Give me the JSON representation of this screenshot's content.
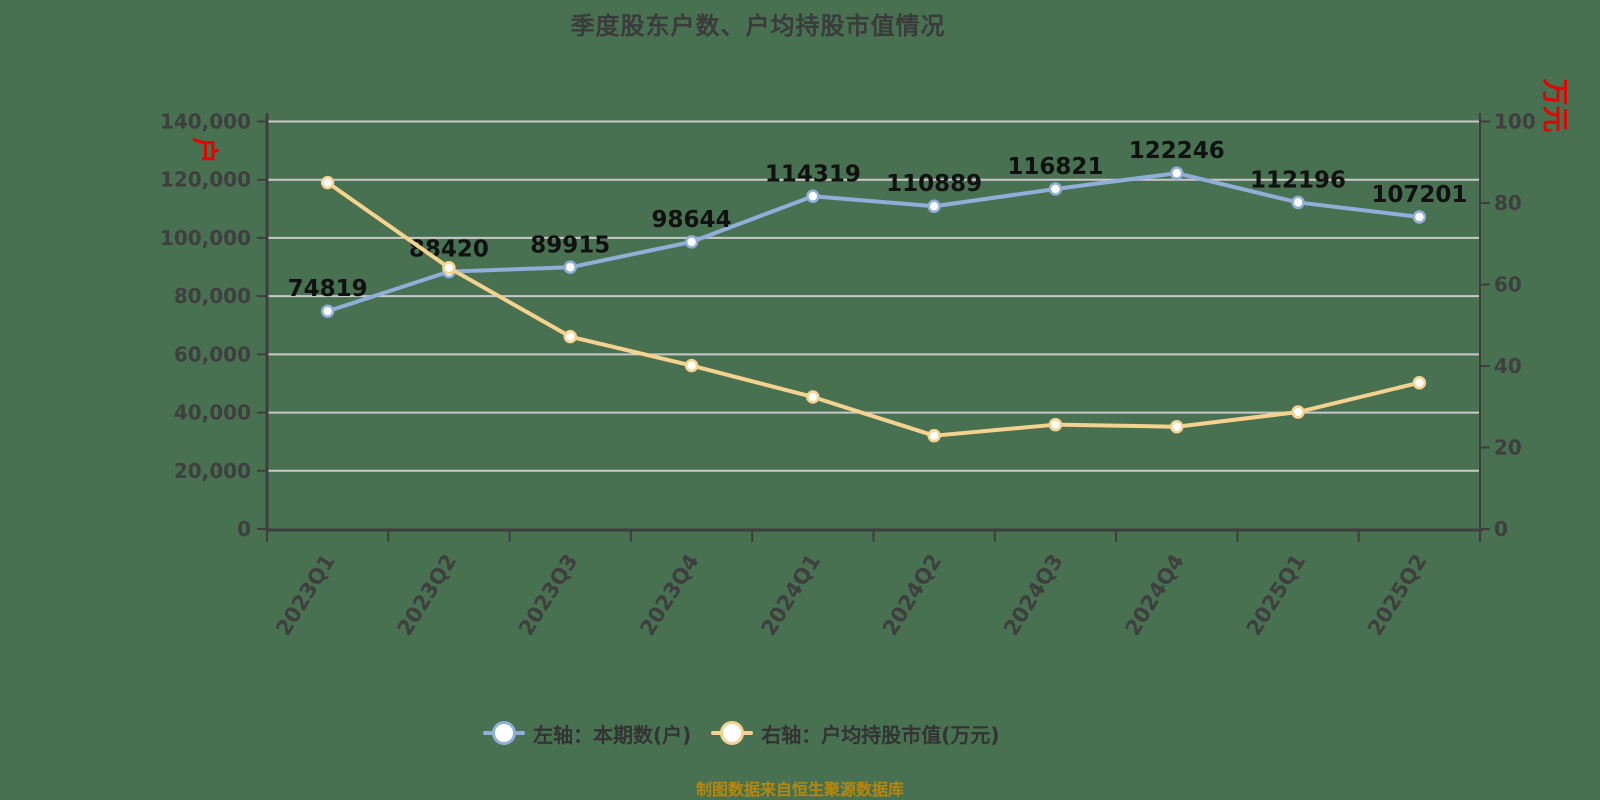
{
  "title": "季度股东户数、户均持股市值情况",
  "caption": "制图数据来自恒生聚源数据库",
  "left_axis": {
    "unit_label": "户",
    "tick_labels": [
      "0",
      "20,000",
      "40,000",
      "60,000",
      "80,000",
      "100,000",
      "120,000",
      "140,000"
    ],
    "tick_values": [
      0,
      20000,
      40000,
      60000,
      80000,
      100000,
      120000,
      140000
    ]
  },
  "right_axis": {
    "unit_label": "万元",
    "tick_labels": [
      "0",
      "20",
      "40",
      "60",
      "80",
      "100"
    ],
    "tick_values": [
      0,
      20,
      40,
      60,
      80,
      100
    ]
  },
  "legend": {
    "items": [
      {
        "label": "左轴：本期数(户)",
        "color": "#8fafd9"
      },
      {
        "label": "右轴：户均持股市值(万元)",
        "color": "#f6d28f"
      }
    ]
  },
  "colors": {
    "background": "#487151",
    "gridline": "#c9c9c9",
    "axis": "#3e3e3e",
    "tick_text": "#3f3f3f",
    "data_label": "#111111",
    "unit_label_red": "#e60000",
    "caption": "#b8860b",
    "series_left": "#8fafd9",
    "series_right": "#f6d28f",
    "marker_fill": "#ffffff"
  },
  "chart_data": {
    "type": "line",
    "title": "季度股东户数、户均持股市值情况",
    "categories": [
      "2023Q1",
      "2023Q2",
      "2023Q3",
      "2023Q4",
      "2024Q1",
      "2024Q2",
      "2024Q3",
      "2024Q4",
      "2025Q1",
      "2025Q2"
    ],
    "series": [
      {
        "name": "左轴：本期数(户)",
        "axis": "left",
        "color": "#8fafd9",
        "values": [
          74819,
          88420,
          89915,
          98644,
          114319,
          110889,
          116821,
          122246,
          112196,
          107201
        ],
        "show_labels": true
      },
      {
        "name": "右轴：户均持股市值(万元)",
        "axis": "right",
        "color": "#f6d28f",
        "values": [
          85.0,
          64.1,
          47.2,
          40.1,
          32.4,
          22.9,
          25.6,
          25.1,
          28.7,
          35.9
        ],
        "show_labels": false
      }
    ],
    "left_ylim": [
      0,
      140000
    ],
    "right_ylim": [
      0,
      100
    ],
    "grid": true,
    "legend_position": "bottom",
    "x_label_rotation_deg": -58
  }
}
